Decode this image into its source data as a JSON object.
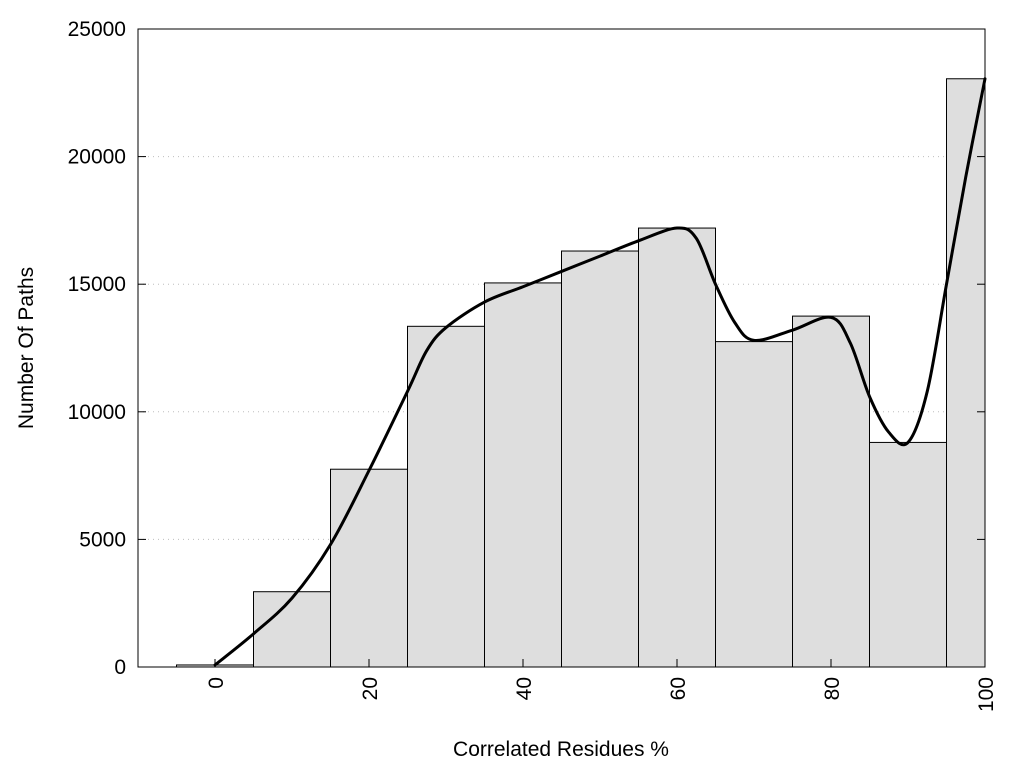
{
  "chart_data": {
    "type": "bar",
    "xlabel": "Correlated Residues %",
    "ylabel": "Number Of Paths",
    "xlim": [
      -10,
      100
    ],
    "ylim": [
      0,
      25000
    ],
    "x_ticks": [
      0,
      20,
      40,
      60,
      80,
      100
    ],
    "x_tick_labels": [
      "0",
      "20",
      "40",
      "60",
      "80",
      "100"
    ],
    "y_ticks": [
      0,
      5000,
      10000,
      15000,
      20000,
      25000
    ],
    "y_tick_labels": [
      "0",
      "5000",
      "10000",
      "15000",
      "20000",
      "25000"
    ],
    "grid": "horizontal-dotted",
    "bin_width": 10,
    "categories": [
      0,
      10,
      20,
      30,
      40,
      50,
      60,
      70,
      80,
      90,
      100
    ],
    "values": [
      80,
      2950,
      7750,
      13350,
      15050,
      16300,
      17200,
      12750,
      13750,
      8800,
      23050
    ],
    "smooth_curve": {
      "x": [
        0,
        5,
        10,
        15,
        20,
        25,
        27.5,
        30,
        35,
        40,
        45,
        50,
        55,
        60,
        62.5,
        65,
        67.5,
        70,
        75,
        80,
        82.5,
        85,
        87.5,
        90,
        92.5,
        95,
        97.5,
        100
      ],
      "y": [
        80,
        1300,
        2700,
        4800,
        7700,
        10800,
        12400,
        13300,
        14300,
        14900,
        15500,
        16100,
        16700,
        17200,
        16800,
        15000,
        13500,
        12800,
        13200,
        13700,
        12700,
        10600,
        9200,
        8800,
        10800,
        15000,
        19200,
        23050
      ]
    }
  }
}
